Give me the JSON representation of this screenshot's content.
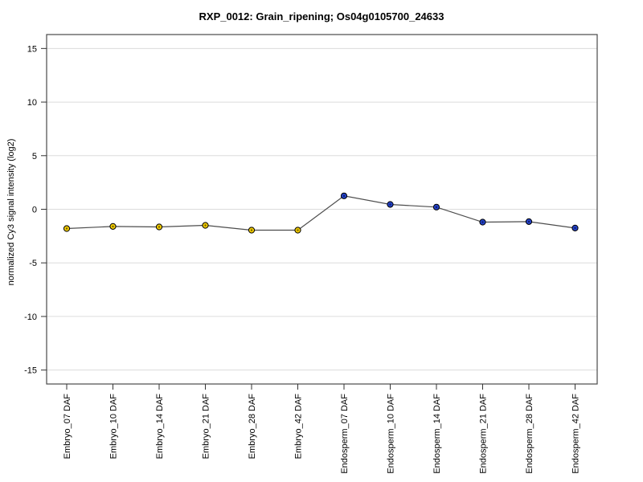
{
  "chart_data": {
    "type": "line",
    "title": "RXP_0012: Grain_ripening; Os04g0105700_24633",
    "xlabel": "",
    "ylabel": "normalized Cy3 signal intensity (log2)",
    "categories": [
      "Embryo_07 DAF",
      "Embryo_10 DAF",
      "Embryo_14 DAF",
      "Embryo_21 DAF",
      "Embryo_28 DAF",
      "Embryo_42 DAF",
      "Endosperm_07 DAF",
      "Endosperm_10 DAF",
      "Endosperm_14 DAF",
      "Endosperm_21 DAF",
      "Endosperm_28 DAF",
      "Endosperm_42 DAF"
    ],
    "series": [
      {
        "name": "normalized Cy3 signal intensity (log2)",
        "values": [
          -1.8,
          -1.6,
          -1.65,
          -1.5,
          -1.95,
          -1.95,
          1.25,
          0.45,
          0.2,
          -1.2,
          -1.15,
          -1.75
        ]
      }
    ],
    "point_groups": [
      "embryo",
      "embryo",
      "embryo",
      "embryo",
      "embryo",
      "embryo",
      "endosperm",
      "endosperm",
      "endosperm",
      "endosperm",
      "endosperm",
      "endosperm"
    ],
    "yticks": [
      15,
      10,
      5,
      0,
      -5,
      -10,
      -15
    ],
    "ylim": [
      -16.3,
      16.3
    ],
    "grid": true,
    "legend_position": "none",
    "colors": {
      "embryo_marker": "#EEC900",
      "embryo_marker_center": "#6B5900",
      "endosperm_marker": "#2442C8",
      "endosperm_marker_center": "#0A1A66",
      "marker_border": "#000000",
      "line": "#4D4D4D",
      "grid": "#DCDCDC",
      "frame": "#4A4A4A",
      "tick": "#333333",
      "text": "#000000"
    }
  }
}
